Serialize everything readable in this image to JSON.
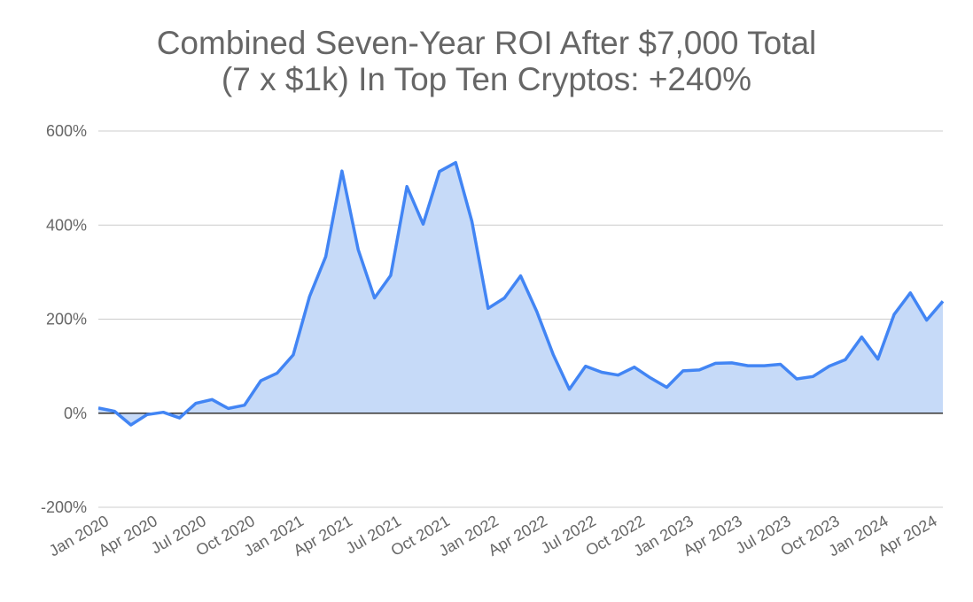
{
  "chart_data": {
    "type": "area",
    "title_line1": "Combined Seven-Year ROI After $7,000 Total",
    "title_line2": "(7 x $1k) In Top Ten Cryptos: +240%",
    "xlabel": "",
    "ylabel": "",
    "ylim": [
      -200,
      600
    ],
    "y_ticks": [
      "600%",
      "400%",
      "200%",
      "0%",
      "-200%"
    ],
    "y_tick_values": [
      600,
      400,
      200,
      0,
      -200
    ],
    "x_ticks": [
      "Jan 2020",
      "Apr 2020",
      "Jul 2020",
      "Oct 2020",
      "Jan 2021",
      "Apr 2021",
      "Jul 2021",
      "Oct 2021",
      "Jan 2022",
      "Apr 2022",
      "Jul 2022",
      "Oct 2022",
      "Jan 2023",
      "Apr 2023",
      "Jul 2023",
      "Oct 2023",
      "Jan 2024",
      "Apr 2024"
    ],
    "grid": true,
    "legend": "none",
    "colors": {
      "line": "#4285f4",
      "fill": "#c6daf8",
      "grid": "#cccccc",
      "zero": "#333333"
    },
    "x": [
      "Jan 2020",
      "Feb 2020",
      "Mar 2020",
      "Apr 2020",
      "May 2020",
      "Jun 2020",
      "Jul 2020",
      "Aug 2020",
      "Sep 2020",
      "Oct 2020",
      "Nov 2020",
      "Dec 2020",
      "Jan 2021",
      "Feb 2021",
      "Mar 2021",
      "Apr 2021",
      "May 2021",
      "Jun 2021",
      "Jul 2021",
      "Aug 2021",
      "Sep 2021",
      "Oct 2021",
      "Nov 2021",
      "Dec 2021",
      "Jan 2022",
      "Feb 2022",
      "Mar 2022",
      "Apr 2022",
      "May 2022",
      "Jun 2022",
      "Jul 2022",
      "Aug 2022",
      "Sep 2022",
      "Oct 2022",
      "Nov 2022",
      "Dec 2022",
      "Jan 2023",
      "Feb 2023",
      "Mar 2023",
      "Apr 2023",
      "May 2023",
      "Jun 2023",
      "Jul 2023",
      "Aug 2023",
      "Sep 2023",
      "Oct 2023",
      "Nov 2023",
      "Dec 2023",
      "Jan 2024",
      "Feb 2024",
      "Mar 2024",
      "Apr 2024",
      "May 2024"
    ],
    "series": [
      {
        "values": [
          11,
          4,
          -25,
          -3,
          2,
          -10,
          21,
          29,
          10,
          17,
          69,
          85,
          124,
          248,
          333,
          515,
          348,
          245,
          293,
          482,
          402,
          514,
          533,
          408,
          223,
          245,
          292,
          216,
          125,
          51,
          100,
          87,
          81,
          98,
          75,
          55,
          90,
          92,
          106,
          107,
          101,
          101,
          104,
          73,
          78,
          100,
          114,
          162,
          115,
          210,
          256,
          198,
          238
        ]
      }
    ]
  }
}
